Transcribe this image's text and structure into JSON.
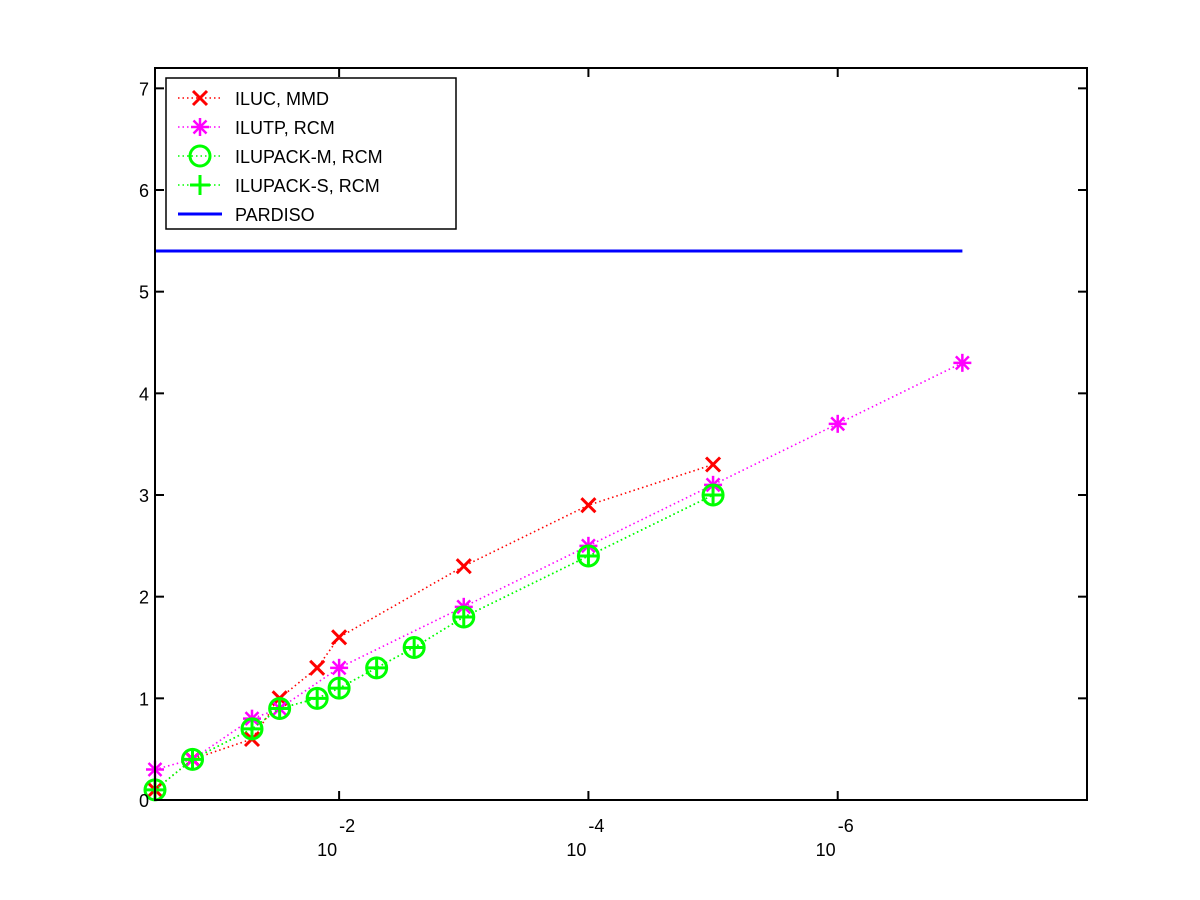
{
  "chart_data": {
    "type": "line",
    "title": "",
    "xlabel": "",
    "ylabel": "",
    "x_scale": "log-reversed",
    "xlim": [
      0.3,
      1e-08
    ],
    "ylim": [
      0,
      7.2
    ],
    "grid": false,
    "legend_placement": "top-left",
    "x_ticks": [
      {
        "value": 0.01,
        "base": "10",
        "exponent": "-2"
      },
      {
        "value": 0.0001,
        "base": "10",
        "exponent": "-4"
      },
      {
        "value": 1e-06,
        "base": "10",
        "exponent": "-6"
      }
    ],
    "y_ticks": [
      {
        "value": 0,
        "label": "0"
      },
      {
        "value": 1,
        "label": "1"
      },
      {
        "value": 2,
        "label": "2"
      },
      {
        "value": 3,
        "label": "3"
      },
      {
        "value": 4,
        "label": "4"
      },
      {
        "value": 5,
        "label": "5"
      },
      {
        "value": 6,
        "label": "6"
      },
      {
        "value": 7,
        "label": "7"
      }
    ],
    "series": [
      {
        "name": "ILUC, MMD",
        "color": "#ff0000",
        "marker": "x",
        "linestyle": "dotted",
        "x": [
          0.3,
          0.15,
          0.05,
          0.03,
          0.015,
          0.01,
          0.001,
          0.0001,
          1e-05
        ],
        "y": [
          0.1,
          0.4,
          0.6,
          1.0,
          1.3,
          1.6,
          2.3,
          2.9,
          3.3
        ]
      },
      {
        "name": "ILUTP, RCM",
        "color": "#ff00ff",
        "marker": "star",
        "linestyle": "dotted",
        "x": [
          0.3,
          0.15,
          0.05,
          0.03,
          0.01,
          0.001,
          0.0001,
          1e-05,
          1e-06,
          1e-07
        ],
        "y": [
          0.3,
          0.4,
          0.8,
          0.9,
          1.3,
          1.9,
          2.5,
          3.1,
          3.7,
          4.3
        ]
      },
      {
        "name": "ILUPACK-M, RCM",
        "color": "#00ff00",
        "marker": "circle",
        "linestyle": "dotted",
        "x": [
          0.3,
          0.15,
          0.05,
          0.03,
          0.015,
          0.01,
          0.005,
          0.0025,
          0.001,
          0.0001,
          1e-05
        ],
        "y": [
          0.1,
          0.4,
          0.7,
          0.9,
          1.0,
          1.1,
          1.3,
          1.5,
          1.8,
          2.4,
          3.0
        ]
      },
      {
        "name": "ILUPACK-S, RCM",
        "color": "#00ff00",
        "marker": "plus",
        "linestyle": "dotted",
        "x": [
          0.3,
          0.15,
          0.05,
          0.03,
          0.015,
          0.01,
          0.005,
          0.0025,
          0.001,
          0.0001,
          1e-05
        ],
        "y": [
          0.1,
          0.4,
          0.7,
          0.9,
          1.0,
          1.1,
          1.3,
          1.5,
          1.8,
          2.4,
          3.0
        ]
      },
      {
        "name": "PARDISO",
        "color": "#0000ff",
        "marker": "none",
        "linestyle": "solid",
        "x": [
          0.3,
          1e-07
        ],
        "y": [
          5.4,
          5.4
        ]
      }
    ]
  }
}
